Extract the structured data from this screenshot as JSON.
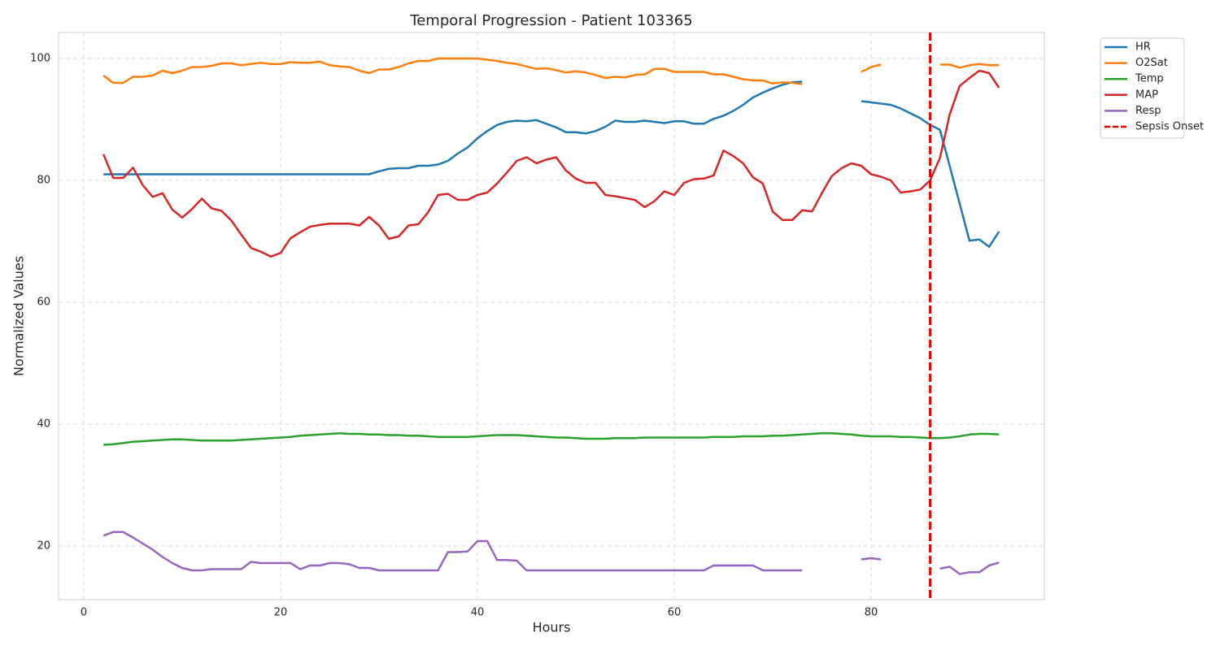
{
  "chart_data": {
    "type": "line",
    "title": "Temporal Progression - Patient 103365",
    "x_label": "Hours",
    "y_label": "Normalized Values",
    "xlim": [
      -2.56,
      97.6
    ],
    "ylim": [
      11.2,
      104.27
    ],
    "xticks": [
      0,
      20,
      40,
      60,
      80
    ],
    "yticks": [
      20,
      40,
      60,
      80,
      100
    ],
    "grid": true,
    "legend": "outside-upper-right",
    "x": [
      2,
      3,
      4,
      5,
      6,
      7,
      8,
      9,
      10,
      11,
      12,
      13,
      14,
      15,
      16,
      17,
      18,
      19,
      20,
      21,
      22,
      23,
      24,
      25,
      26,
      27,
      28,
      29,
      30,
      31,
      32,
      33,
      34,
      35,
      36,
      37,
      38,
      39,
      40,
      41,
      42,
      43,
      44,
      45,
      46,
      47,
      48,
      49,
      50,
      51,
      52,
      53,
      54,
      55,
      56,
      57,
      58,
      59,
      60,
      61,
      62,
      63,
      64,
      65,
      66,
      67,
      68,
      69,
      70,
      71,
      72,
      73,
      74,
      75,
      76,
      77,
      78,
      79,
      80,
      81,
      82,
      83,
      84,
      85,
      86,
      87,
      88,
      89,
      90,
      91,
      92,
      93
    ],
    "series": [
      {
        "name": "HR",
        "color": "#1f77b4",
        "values": [
          81,
          81,
          81,
          81,
          81,
          81,
          81,
          81,
          81,
          81,
          81,
          81,
          81,
          81,
          81,
          81,
          81,
          81,
          81,
          81,
          81,
          81,
          81,
          81,
          81,
          81,
          81,
          81,
          81.5,
          81.9,
          82,
          82,
          82.4,
          82.4,
          82.6,
          83.2,
          84.4,
          85.4,
          86.9,
          88.1,
          89.1,
          89.6,
          89.8,
          89.7,
          89.9,
          89.3,
          88.7,
          87.9,
          87.9,
          87.7,
          88.1,
          88.8,
          89.8,
          89.6,
          89.6,
          89.8,
          89.6,
          89.4,
          89.7,
          89.7,
          89.3,
          89.3,
          90.1,
          90.6,
          91.4,
          92.4,
          93.6,
          94.4,
          95.1,
          95.7,
          96.1,
          96.2,
          null,
          null,
          null,
          null,
          null,
          93,
          92.8,
          92.6,
          92.4,
          91.8,
          91,
          90.2,
          89.1,
          88.3,
          82.3,
          76.2,
          70.1,
          70.3,
          69.1,
          71.6
        ]
      },
      {
        "name": "O2Sat",
        "color": "#ff7f0e",
        "values": [
          97.2,
          96,
          96,
          97,
          97,
          97.2,
          98,
          97.6,
          98,
          98.6,
          98.6,
          98.8,
          99.2,
          99.2,
          98.9,
          99.1,
          99.3,
          99.1,
          99.1,
          99.4,
          99.3,
          99.3,
          99.5,
          98.9,
          98.7,
          98.6,
          98,
          97.6,
          98.2,
          98.2,
          98.6,
          99.2,
          99.6,
          99.6,
          100,
          100,
          100,
          100,
          100,
          99.8,
          99.6,
          99.3,
          99.1,
          98.7,
          98.3,
          98.4,
          98.1,
          97.7,
          97.9,
          97.7,
          97.3,
          96.8,
          97,
          96.9,
          97.3,
          97.4,
          98.3,
          98.3,
          97.8,
          97.8,
          97.8,
          97.8,
          97.4,
          97.4,
          97,
          96.6,
          96.4,
          96.4,
          95.9,
          96.1,
          96,
          95.8,
          null,
          null,
          null,
          null,
          null,
          97.8,
          98.6,
          99,
          null,
          null,
          null,
          null,
          null,
          99,
          99,
          98.5,
          98.9,
          99.1,
          98.9,
          98.9
        ]
      },
      {
        "name": "Temp",
        "color": "#2ca02c",
        "values": [
          36.6,
          36.7,
          36.9,
          37.1,
          37.2,
          37.3,
          37.4,
          37.5,
          37.5,
          37.4,
          37.3,
          37.3,
          37.3,
          37.3,
          37.4,
          37.5,
          37.6,
          37.7,
          37.8,
          37.9,
          38.1,
          38.2,
          38.3,
          38.4,
          38.5,
          38.4,
          38.4,
          38.3,
          38.3,
          38.2,
          38.2,
          38.1,
          38.1,
          38,
          37.9,
          37.9,
          37.9,
          37.9,
          38,
          38.1,
          38.2,
          38.2,
          38.2,
          38.1,
          38,
          37.9,
          37.8,
          37.8,
          37.7,
          37.6,
          37.6,
          37.6,
          37.7,
          37.7,
          37.7,
          37.8,
          37.8,
          37.8,
          37.8,
          37.8,
          37.8,
          37.8,
          37.9,
          37.9,
          37.9,
          38,
          38,
          38,
          38.1,
          38.1,
          38.2,
          38.3,
          38.4,
          38.5,
          38.5,
          38.4,
          38.3,
          38.1,
          38,
          38,
          38,
          37.9,
          37.9,
          37.8,
          37.7,
          37.7,
          37.8,
          38,
          38.3,
          38.4,
          38.4,
          38.3
        ]
      },
      {
        "name": "MAP",
        "color": "#d62728",
        "values": [
          84.3,
          80.4,
          80.4,
          82.1,
          79.2,
          77.3,
          77.9,
          75.2,
          73.9,
          75.3,
          77,
          75.4,
          75,
          73.4,
          71.1,
          68.9,
          68.3,
          67.5,
          68.1,
          70.5,
          71.5,
          72.4,
          72.7,
          72.9,
          72.9,
          72.9,
          72.6,
          74,
          72.6,
          70.4,
          70.8,
          72.6,
          72.8,
          74.8,
          77.6,
          77.8,
          76.8,
          76.8,
          77.6,
          78,
          79.5,
          81.3,
          83.2,
          83.8,
          82.8,
          83.4,
          83.8,
          81.6,
          80.3,
          79.6,
          79.6,
          77.6,
          77.4,
          77.1,
          76.8,
          75.6,
          76.6,
          78.2,
          77.6,
          79.6,
          80.2,
          80.3,
          80.8,
          84.9,
          84,
          82.8,
          80.5,
          79.5,
          74.9,
          73.5,
          73.5,
          75.1,
          74.9,
          77.9,
          80.7,
          82,
          82.8,
          82.4,
          81,
          80.6,
          80,
          78,
          78.2,
          78.5,
          80,
          83.7,
          90.9,
          95.5,
          96.8,
          98,
          97.6,
          95.2
        ]
      },
      {
        "name": "Resp",
        "color": "#9467bd",
        "values": [
          21.7,
          22.3,
          22.3,
          21.4,
          20.4,
          19.4,
          18.2,
          17.2,
          16.4,
          16,
          16,
          16.2,
          16.2,
          16.2,
          16.2,
          17.4,
          17.2,
          17.2,
          17.2,
          17.2,
          16.2,
          16.8,
          16.8,
          17.2,
          17.2,
          17,
          16.4,
          16.4,
          16,
          16,
          16,
          16,
          16,
          16,
          16,
          19,
          19,
          19.1,
          20.8,
          20.8,
          17.7,
          17.7,
          17.6,
          16,
          16,
          16,
          16,
          16,
          16,
          16,
          16,
          16,
          16,
          16,
          16,
          16,
          16,
          16,
          16,
          16,
          16,
          16,
          16.8,
          16.8,
          16.8,
          16.8,
          16.8,
          16,
          16,
          16,
          16,
          16,
          null,
          null,
          null,
          null,
          null,
          17.8,
          18,
          17.8,
          null,
          null,
          null,
          null,
          null,
          16.3,
          16.6,
          15.4,
          15.7,
          15.7,
          16.8,
          17.3
        ]
      }
    ],
    "vlines": [
      {
        "x": 86,
        "label": "Sepsis Onset",
        "color": "#e00000"
      }
    ]
  }
}
